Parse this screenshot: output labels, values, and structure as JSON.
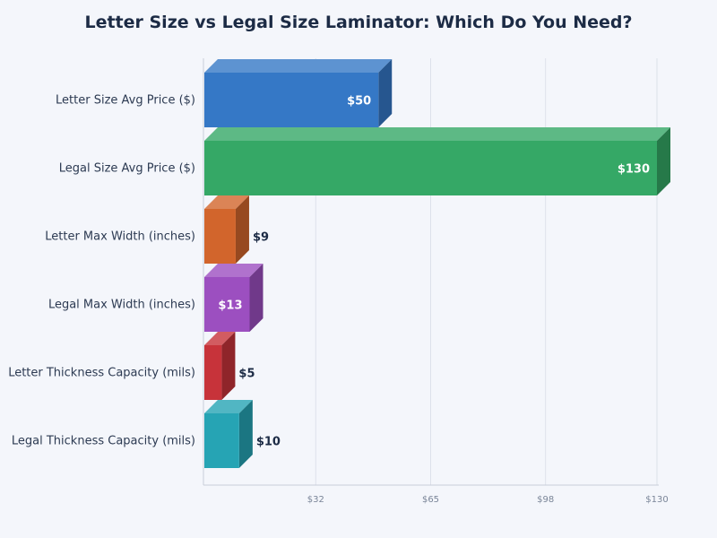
{
  "chart_data": {
    "type": "bar",
    "orientation": "horizontal",
    "title": "Letter Size vs Legal Size Laminator: Which Do You Need?",
    "xlabel": "",
    "ylabel": "",
    "categories": [
      "Letter Size Avg Price ($)",
      "Legal Size Avg Price ($)",
      "Letter Max Width (inches)",
      "Legal Max Width (inches)",
      "Letter Thickness Capacity (mils)",
      "Legal Thickness Capacity (mils)"
    ],
    "values": [
      50,
      130,
      9,
      13,
      5,
      10
    ],
    "value_labels": [
      "$50",
      "$130",
      "$9",
      "$13",
      "$5",
      "$10"
    ],
    "value_label_inside": [
      true,
      true,
      false,
      true,
      false,
      false
    ],
    "colors": [
      "#3578c6",
      "#35a866",
      "#d2652c",
      "#9c4fc0",
      "#c7333a",
      "#26a4b4"
    ],
    "xlim": [
      0,
      130
    ],
    "x_ticks": [
      32,
      65,
      98,
      130
    ],
    "x_tick_labels": [
      "$32",
      "$65",
      "$98",
      "$130"
    ],
    "grid": true,
    "style": "3d"
  }
}
